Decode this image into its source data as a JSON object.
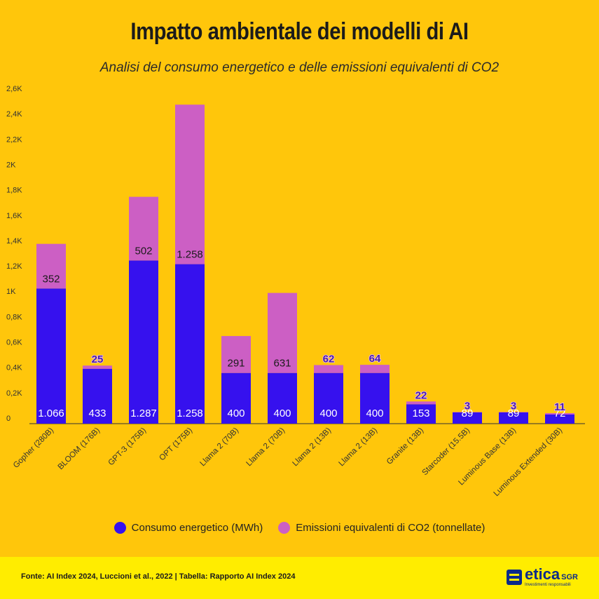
{
  "header": {
    "title": "Impatto ambientale dei modelli di AI",
    "subtitle": "Analisi del consumo energetico e delle emissioni equivalenti di CO2"
  },
  "colors": {
    "background": "#FFC60B",
    "energy": "#3611EE",
    "emissions": "#CC5FC4",
    "footer": "#FFED00"
  },
  "chart_data": {
    "type": "bar",
    "stacked": true,
    "title": "Impatto ambientale dei modelli di AI",
    "subtitle": "Analisi del consumo energetico e delle emissioni equivalenti di CO2",
    "categories": [
      "Gopher (280B)",
      "BLOOM (176B)",
      "GPT-3 (175B)",
      "OPT (175B)",
      "Llama 2 (70B)",
      "Llama 2 (70B)",
      "Llama 2 (13B)",
      "Llama 2 (13B)",
      "Granite (13B)",
      "Starcoder (15.5B)",
      "Luminous Base (13B)",
      "Luminous Extended (30B)"
    ],
    "series": [
      {
        "name": "Consumo energetico (MWh)",
        "values": [
          1066,
          433,
          1287,
          1258,
          400,
          400,
          400,
          400,
          153,
          89,
          89,
          72
        ],
        "labels": [
          "1.066",
          "433",
          "1.287",
          "1.258",
          "400",
          "400",
          "400",
          "400",
          "153",
          "89",
          "89",
          "72"
        ]
      },
      {
        "name": "Emissioni equivalenti di CO2 (tonnellate)",
        "values": [
          352,
          25,
          502,
          1258,
          291,
          631,
          62,
          64,
          22,
          3,
          3,
          11
        ],
        "labels": [
          "352",
          "25",
          "502",
          "1.258",
          "291",
          "631",
          "62",
          "64",
          "22",
          "3",
          "3",
          "11"
        ]
      }
    ],
    "yticks": [
      0,
      200,
      400,
      600,
      800,
      1000,
      1200,
      1400,
      1600,
      1800,
      2000,
      2200,
      2400,
      2600
    ],
    "ytick_labels": [
      "0",
      "0,2K",
      "0,4K",
      "0,6K",
      "0,8K",
      "1K",
      "1,2K",
      "1,4K",
      "1,6K",
      "1,8K",
      "2K",
      "2,2K",
      "2,4K",
      "2,6K"
    ],
    "ylim": [
      0,
      2600
    ],
    "grid": false,
    "legend": "bottom-center"
  },
  "legend": {
    "energy_label": "Consumo energetico (MWh)",
    "emissions_label": "Emissioni equivalenti di CO2 (tonnellate)"
  },
  "footer": {
    "source": "Fonte: AI Index 2024, Luccioni et al., 2022 | Tabella: Rapporto AI Index 2024",
    "logo_word": "etica",
    "logo_suffix": "SGR",
    "logo_tagline": "Investimenti responsabili"
  }
}
